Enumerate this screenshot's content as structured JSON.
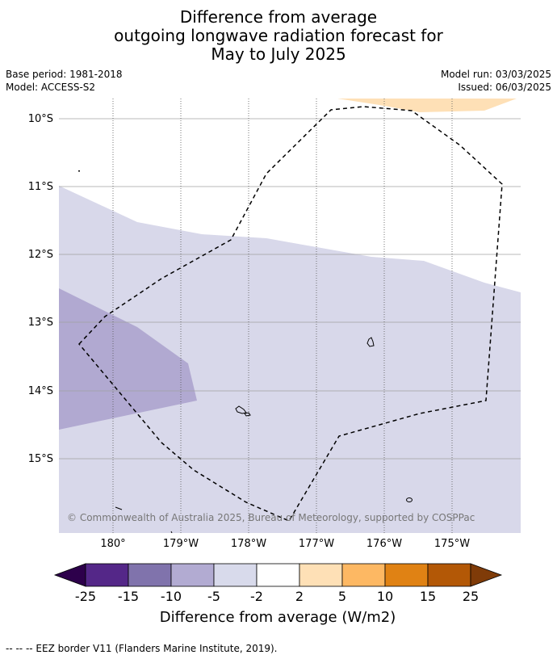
{
  "title": {
    "line1": "Difference from average",
    "line2": "outgoing longwave radiation forecast for",
    "line3": "May to July 2025"
  },
  "meta": {
    "base_period": "Base period: 1981-2018",
    "model": "Model: ACCESS-S2",
    "model_run": "Model run: 03/03/2025",
    "issued": "Issued: 06/03/2025"
  },
  "map": {
    "lat_labels": [
      "10°S",
      "11°S",
      "12°S",
      "13°S",
      "14°S",
      "15°S"
    ],
    "lon_labels": [
      "180°",
      "179°W",
      "178°W",
      "177°W",
      "176°W",
      "175°W"
    ],
    "copyright": "© Commonwealth of Australia 2025, Bureau of Meteorology, supported by COSPPac",
    "colors": {
      "light_purple": "#d8d8ea",
      "mid_purple": "#b1a9d1",
      "light_orange": "#fee0b6"
    }
  },
  "colorbar": {
    "tick_labels": [
      "-25",
      "-15",
      "-10",
      "-5",
      "-2",
      "2",
      "5",
      "10",
      "15",
      "25"
    ],
    "colors": [
      "#2d004b",
      "#542788",
      "#8073ac",
      "#b2abd2",
      "#d8daeb",
      "#ffffff",
      "#fee0b6",
      "#fdb863",
      "#e08214",
      "#b35806",
      "#7f3b08"
    ],
    "label": "Difference from average (W/m2)"
  },
  "footer": "--  --  -- EEZ border V11 (Flanders Marine Institute, 2019)."
}
